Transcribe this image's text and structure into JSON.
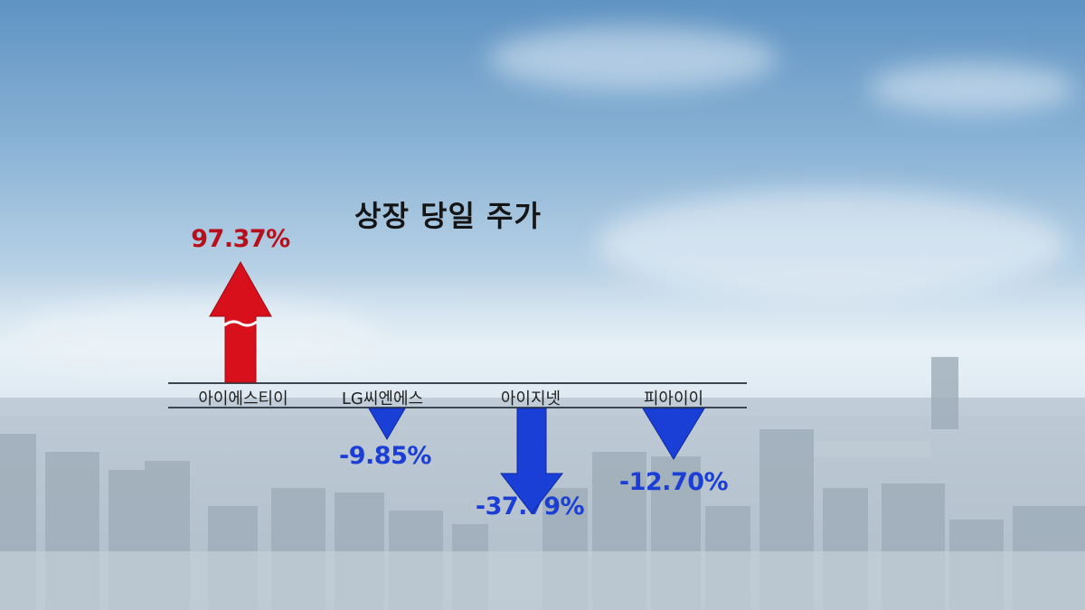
{
  "chart_data": {
    "type": "bar",
    "title": "상장 당일 주가",
    "categories": [
      "아이에스티이",
      "LG씨엔에스",
      "아이지넷",
      "피아이이"
    ],
    "values": [
      97.37,
      -9.85,
      -37.79,
      -12.7
    ],
    "value_labels": [
      "97.37%",
      "-9.85%",
      "-37.79%",
      "-12.70%"
    ],
    "xlabel": "",
    "ylabel": "",
    "grid": false,
    "colors": {
      "positive": "#d8101c",
      "negative": "#1a3fd6"
    }
  }
}
